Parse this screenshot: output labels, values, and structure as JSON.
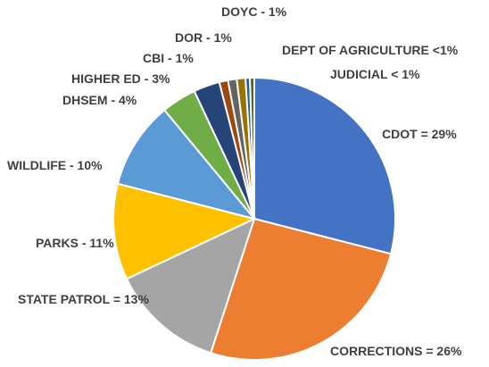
{
  "chart_data": {
    "type": "pie",
    "categories": [
      "CDOT",
      "CORRECTIONS",
      "STATE PATROL",
      "PARKS",
      "WILDLIFE",
      "DHSEM",
      "HIGHER ED",
      "CBI",
      "DOR",
      "DOYC",
      "DEPT OF AGRICULTURE",
      "JUDICIAL"
    ],
    "values": [
      29,
      26,
      13,
      11,
      10,
      4,
      3,
      1,
      1,
      1,
      0.5,
      0.5
    ],
    "value_labels": [
      "= 29%",
      "= 26%",
      "= 13%",
      "- 11%",
      "- 10%",
      "- 4%",
      "- 3%",
      "- 1%",
      "- 1%",
      "- 1%",
      "<1%",
      "< 1%"
    ],
    "colors": [
      "#4472c4",
      "#ed7d31",
      "#a5a5a5",
      "#ffc000",
      "#5b9bd5",
      "#70ad47",
      "#264478",
      "#9e480e",
      "#636363",
      "#997300",
      "#255e91",
      "#43682b"
    ],
    "start_angle": 0,
    "direction": "clockwise"
  }
}
